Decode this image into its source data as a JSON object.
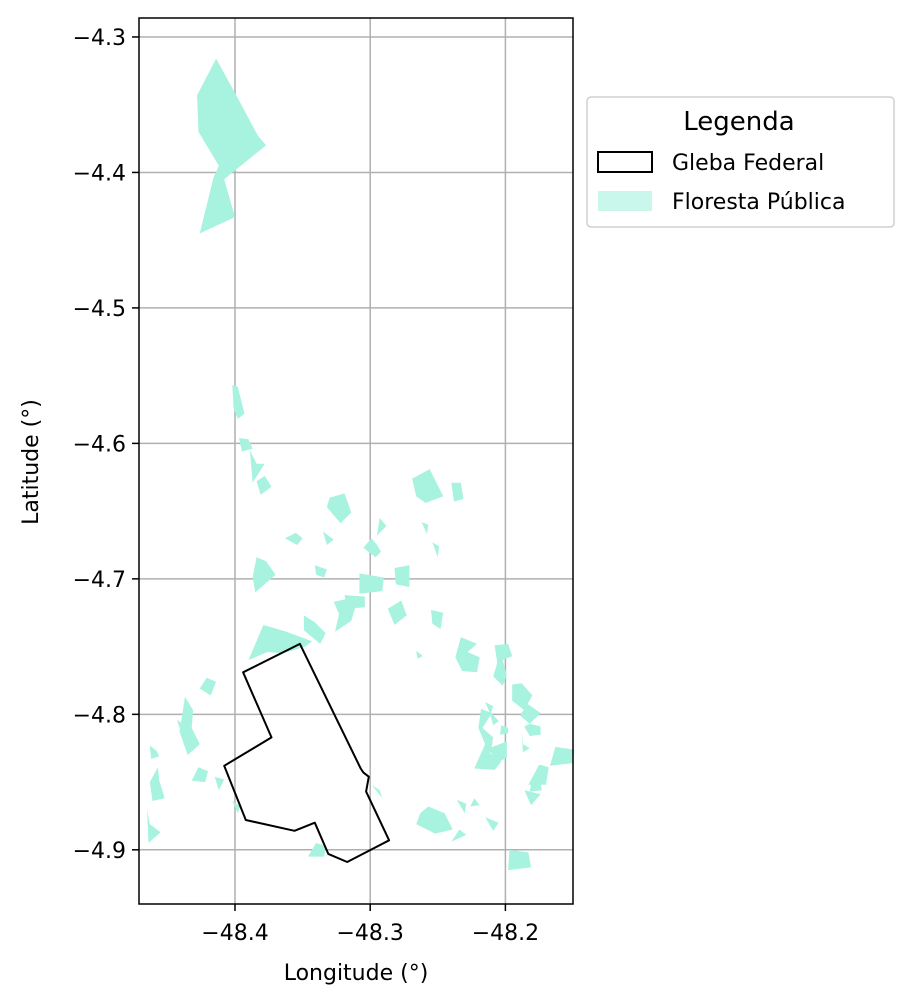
{
  "colors": {
    "forest_fill": "#a8f2e0",
    "forest_legend_fill": "#c9f7ec",
    "gleba_stroke": "#000000",
    "grid": "#b0b0b0",
    "axes": "#000000"
  },
  "axes": {
    "xlabel": "Longitude (°)",
    "ylabel": "Latitude (°)",
    "xlim": [
      -48.471,
      -48.15
    ],
    "ylim": [
      -4.94,
      -4.286
    ],
    "xticks": [
      {
        "value": -48.4,
        "label": "−48.4"
      },
      {
        "value": -48.3,
        "label": "−48.3"
      },
      {
        "value": -48.2,
        "label": "−48.2"
      }
    ],
    "yticks": [
      {
        "value": -4.3,
        "label": "−4.3"
      },
      {
        "value": -4.4,
        "label": "−4.4"
      },
      {
        "value": -4.5,
        "label": "−4.5"
      },
      {
        "value": -4.6,
        "label": "−4.6"
      },
      {
        "value": -4.7,
        "label": "−4.7"
      },
      {
        "value": -4.8,
        "label": "−4.8"
      },
      {
        "value": -4.9,
        "label": "−4.9"
      }
    ],
    "grid": true
  },
  "legend": {
    "title": "Legenda",
    "placement": "outside-right-top",
    "items": [
      {
        "label": "Gleba Federal",
        "kind": "outline"
      },
      {
        "label": "Floresta Pública",
        "kind": "fill"
      }
    ]
  },
  "layers": {
    "gleba_federal": [
      [
        -48.352,
        -4.748
      ],
      [
        -48.394,
        -4.769
      ],
      [
        -48.373,
        -4.817
      ],
      [
        -48.408,
        -4.838
      ],
      [
        -48.392,
        -4.878
      ],
      [
        -48.356,
        -4.886
      ],
      [
        -48.341,
        -4.88
      ],
      [
        -48.331,
        -4.903
      ],
      [
        -48.317,
        -4.909
      ],
      [
        -48.286,
        -4.893
      ],
      [
        -48.303,
        -4.857
      ],
      [
        -48.301,
        -4.846
      ],
      [
        -48.305,
        -4.843
      ],
      [
        -48.307,
        -4.84
      ],
      [
        -48.352,
        -4.748
      ]
    ],
    "floresta_publica": [
      [
        [
          -48.414,
          -4.316
        ],
        [
          -48.428,
          -4.343
        ],
        [
          -48.427,
          -4.37
        ],
        [
          -48.412,
          -4.395
        ],
        [
          -48.416,
          -4.404
        ],
        [
          -48.426,
          -4.445
        ],
        [
          -48.4,
          -4.433
        ],
        [
          -48.408,
          -4.405
        ],
        [
          -48.377,
          -4.38
        ],
        [
          -48.383,
          -4.373
        ],
        [
          -48.398,
          -4.345
        ]
      ],
      [
        [
          -48.402,
          -4.557
        ],
        [
          -48.398,
          -4.558
        ],
        [
          -48.393,
          -4.578
        ],
        [
          -48.398,
          -4.582
        ],
        [
          -48.401,
          -4.574
        ]
      ],
      [
        [
          -48.397,
          -4.596
        ],
        [
          -48.39,
          -4.597
        ],
        [
          -48.387,
          -4.604
        ],
        [
          -48.395,
          -4.606
        ]
      ],
      [
        [
          -48.389,
          -4.605
        ],
        [
          -48.384,
          -4.615
        ],
        [
          -48.378,
          -4.615
        ],
        [
          -48.387,
          -4.629
        ]
      ],
      [
        [
          -48.384,
          -4.628
        ],
        [
          -48.378,
          -4.624
        ],
        [
          -48.373,
          -4.632
        ],
        [
          -48.381,
          -4.638
        ]
      ],
      [
        [
          -48.384,
          -4.684
        ],
        [
          -48.377,
          -4.687
        ],
        [
          -48.37,
          -4.697
        ],
        [
          -48.385,
          -4.71
        ],
        [
          -48.387,
          -4.699
        ]
      ],
      [
        [
          -48.379,
          -4.734
        ],
        [
          -48.362,
          -4.739
        ],
        [
          -48.343,
          -4.746
        ],
        [
          -48.348,
          -4.75
        ],
        [
          -48.365,
          -4.755
        ],
        [
          -48.376,
          -4.754
        ],
        [
          -48.39,
          -4.76
        ]
      ],
      [
        [
          -48.349,
          -4.727
        ],
        [
          -48.341,
          -4.732
        ],
        [
          -48.333,
          -4.74
        ],
        [
          -48.337,
          -4.748
        ],
        [
          -48.349,
          -4.738
        ]
      ],
      [
        [
          -48.327,
          -4.717
        ],
        [
          -48.318,
          -4.715
        ],
        [
          -48.311,
          -4.721
        ],
        [
          -48.314,
          -4.731
        ],
        [
          -48.326,
          -4.739
        ],
        [
          -48.323,
          -4.726
        ]
      ],
      [
        [
          -48.308,
          -4.696
        ],
        [
          -48.29,
          -4.699
        ],
        [
          -48.291,
          -4.709
        ],
        [
          -48.308,
          -4.711
        ]
      ],
      [
        [
          -48.319,
          -4.712
        ],
        [
          -48.304,
          -4.713
        ],
        [
          -48.304,
          -4.721
        ],
        [
          -48.317,
          -4.722
        ]
      ],
      [
        [
          -48.282,
          -4.692
        ],
        [
          -48.271,
          -4.69
        ],
        [
          -48.271,
          -4.706
        ],
        [
          -48.281,
          -4.704
        ]
      ],
      [
        [
          -48.299,
          -4.67
        ],
        [
          -48.295,
          -4.675
        ],
        [
          -48.292,
          -4.68
        ],
        [
          -48.296,
          -4.684
        ],
        [
          -48.305,
          -4.677
        ]
      ],
      [
        [
          -48.293,
          -4.655
        ],
        [
          -48.288,
          -4.661
        ],
        [
          -48.295,
          -4.668
        ]
      ],
      [
        [
          -48.335,
          -4.665
        ],
        [
          -48.327,
          -4.671
        ],
        [
          -48.332,
          -4.675
        ]
      ],
      [
        [
          -48.341,
          -4.69
        ],
        [
          -48.332,
          -4.693
        ],
        [
          -48.334,
          -4.699
        ],
        [
          -48.34,
          -4.697
        ]
      ],
      [
        [
          -48.287,
          -4.722
        ],
        [
          -48.277,
          -4.716
        ],
        [
          -48.273,
          -4.727
        ],
        [
          -48.282,
          -4.734
        ]
      ],
      [
        [
          -48.355,
          -4.666
        ],
        [
          -48.35,
          -4.67
        ],
        [
          -48.354,
          -4.675
        ],
        [
          -48.363,
          -4.67
        ]
      ],
      [
        [
          -48.33,
          -4.64
        ],
        [
          -48.319,
          -4.637
        ],
        [
          -48.314,
          -4.651
        ],
        [
          -48.322,
          -4.659
        ],
        [
          -48.332,
          -4.647
        ]
      ],
      [
        [
          -48.269,
          -4.626
        ],
        [
          -48.256,
          -4.619
        ],
        [
          -48.246,
          -4.639
        ],
        [
          -48.259,
          -4.644
        ],
        [
          -48.266,
          -4.639
        ]
      ],
      [
        [
          -48.24,
          -4.629
        ],
        [
          -48.233,
          -4.629
        ],
        [
          -48.231,
          -4.641
        ],
        [
          -48.238,
          -4.643
        ]
      ],
      [
        [
          -48.262,
          -4.658
        ],
        [
          -48.257,
          -4.66
        ],
        [
          -48.258,
          -4.667
        ]
      ],
      [
        [
          -48.254,
          -4.673
        ],
        [
          -48.249,
          -4.676
        ],
        [
          -48.25,
          -4.684
        ]
      ],
      [
        [
          -48.255,
          -4.723
        ],
        [
          -48.246,
          -4.725
        ],
        [
          -48.248,
          -4.737
        ],
        [
          -48.254,
          -4.733
        ]
      ],
      [
        [
          -48.266,
          -4.753
        ],
        [
          -48.261,
          -4.757
        ],
        [
          -48.265,
          -4.759
        ]
      ],
      [
        [
          -48.233,
          -4.743
        ],
        [
          -48.221,
          -4.748
        ],
        [
          -48.228,
          -4.754
        ],
        [
          -48.219,
          -4.758
        ],
        [
          -48.221,
          -4.769
        ],
        [
          -48.232,
          -4.768
        ],
        [
          -48.237,
          -4.758
        ]
      ],
      [
        [
          -48.208,
          -4.749
        ],
        [
          -48.198,
          -4.748
        ],
        [
          -48.195,
          -4.757
        ],
        [
          -48.202,
          -4.76
        ],
        [
          -48.199,
          -4.771
        ],
        [
          -48.202,
          -4.779
        ],
        [
          -48.209,
          -4.772
        ],
        [
          -48.206,
          -4.762
        ]
      ],
      [
        [
          -48.195,
          -4.778
        ],
        [
          -48.188,
          -4.777
        ],
        [
          -48.18,
          -4.786
        ],
        [
          -48.186,
          -4.797
        ],
        [
          -48.195,
          -4.79
        ]
      ],
      [
        [
          -48.184,
          -4.792
        ],
        [
          -48.174,
          -4.799
        ],
        [
          -48.182,
          -4.807
        ],
        [
          -48.189,
          -4.801
        ]
      ],
      [
        [
          -48.215,
          -4.791
        ],
        [
          -48.209,
          -4.794
        ],
        [
          -48.211,
          -4.8
        ]
      ],
      [
        [
          -48.218,
          -4.796
        ],
        [
          -48.21,
          -4.799
        ],
        [
          -48.217,
          -4.81
        ],
        [
          -48.209,
          -4.817
        ],
        [
          -48.211,
          -4.829
        ],
        [
          -48.203,
          -4.835
        ],
        [
          -48.208,
          -4.841
        ],
        [
          -48.223,
          -4.84
        ],
        [
          -48.215,
          -4.822
        ],
        [
          -48.22,
          -4.81
        ]
      ],
      [
        [
          -48.188,
          -4.813
        ],
        [
          -48.187,
          -4.822
        ],
        [
          -48.182,
          -4.825
        ],
        [
          -48.187,
          -4.828
        ]
      ],
      [
        [
          -48.182,
          -4.807
        ],
        [
          -48.174,
          -4.809
        ],
        [
          -48.174,
          -4.815
        ],
        [
          -48.182,
          -4.816
        ],
        [
          -48.186,
          -4.809
        ]
      ],
      [
        [
          -48.203,
          -4.808
        ],
        [
          -48.198,
          -4.81
        ],
        [
          -48.198,
          -4.814
        ],
        [
          -48.204,
          -4.815
        ]
      ],
      [
        [
          -48.212,
          -4.797
        ],
        [
          -48.205,
          -4.805
        ],
        [
          -48.209,
          -4.808
        ]
      ],
      [
        [
          -48.199,
          -4.82
        ],
        [
          -48.199,
          -4.832
        ],
        [
          -48.207,
          -4.836
        ],
        [
          -48.212,
          -4.825
        ]
      ],
      [
        [
          -48.175,
          -4.837
        ],
        [
          -48.168,
          -4.839
        ],
        [
          -48.17,
          -4.852
        ],
        [
          -48.183,
          -4.852
        ]
      ],
      [
        [
          -48.163,
          -4.824
        ],
        [
          -48.149,
          -4.826
        ],
        [
          -48.15,
          -4.836
        ],
        [
          -48.167,
          -4.838
        ]
      ],
      [
        [
          -48.175,
          -4.847
        ],
        [
          -48.173,
          -4.856
        ],
        [
          -48.182,
          -4.857
        ],
        [
          -48.181,
          -4.851
        ]
      ],
      [
        [
          -48.186,
          -4.856
        ],
        [
          -48.174,
          -4.859
        ],
        [
          -48.181,
          -4.867
        ]
      ],
      [
        [
          -48.223,
          -4.862
        ],
        [
          -48.219,
          -4.867
        ],
        [
          -48.226,
          -4.868
        ]
      ],
      [
        [
          -48.236,
          -4.863
        ],
        [
          -48.229,
          -4.866
        ],
        [
          -48.23,
          -4.873
        ]
      ],
      [
        [
          -48.257,
          -4.868
        ],
        [
          -48.245,
          -4.873
        ],
        [
          -48.239,
          -4.885
        ],
        [
          -48.252,
          -4.888
        ],
        [
          -48.266,
          -4.881
        ],
        [
          -48.263,
          -4.873
        ]
      ],
      [
        [
          -48.234,
          -4.885
        ],
        [
          -48.229,
          -4.889
        ],
        [
          -48.24,
          -4.894
        ]
      ],
      [
        [
          -48.215,
          -4.876
        ],
        [
          -48.205,
          -4.88
        ],
        [
          -48.209,
          -4.886
        ]
      ],
      [
        [
          -48.197,
          -4.9
        ],
        [
          -48.183,
          -4.902
        ],
        [
          -48.181,
          -4.913
        ],
        [
          -48.198,
          -4.915
        ]
      ],
      [
        [
          -48.421,
          -4.773
        ],
        [
          -48.414,
          -4.776
        ],
        [
          -48.418,
          -4.786
        ],
        [
          -48.426,
          -4.781
        ]
      ],
      [
        [
          -48.437,
          -4.787
        ],
        [
          -48.431,
          -4.797
        ],
        [
          -48.432,
          -4.81
        ],
        [
          -48.426,
          -4.822
        ],
        [
          -48.435,
          -4.83
        ],
        [
          -48.441,
          -4.813
        ]
      ],
      [
        [
          -48.443,
          -4.804
        ],
        [
          -48.439,
          -4.807
        ],
        [
          -48.44,
          -4.813
        ]
      ],
      [
        [
          -48.463,
          -4.823
        ],
        [
          -48.458,
          -4.827
        ],
        [
          -48.456,
          -4.831
        ],
        [
          -48.462,
          -4.833
        ]
      ],
      [
        [
          -48.457,
          -4.839
        ],
        [
          -48.456,
          -4.849
        ],
        [
          -48.452,
          -4.862
        ],
        [
          -48.461,
          -4.864
        ],
        [
          -48.463,
          -4.85
        ]
      ],
      [
        [
          -48.465,
          -4.87
        ],
        [
          -48.463,
          -4.881
        ],
        [
          -48.455,
          -4.887
        ],
        [
          -48.464,
          -4.895
        ]
      ],
      [
        [
          -48.427,
          -4.839
        ],
        [
          -48.42,
          -4.842
        ],
        [
          -48.422,
          -4.85
        ],
        [
          -48.432,
          -4.849
        ]
      ],
      [
        [
          -48.415,
          -4.846
        ],
        [
          -48.408,
          -4.848
        ],
        [
          -48.412,
          -4.856
        ]
      ],
      [
        [
          -48.402,
          -4.864
        ],
        [
          -48.396,
          -4.868
        ],
        [
          -48.398,
          -4.873
        ]
      ],
      [
        [
          -48.34,
          -4.895
        ],
        [
          -48.333,
          -4.897
        ],
        [
          -48.334,
          -4.905
        ],
        [
          -48.346,
          -4.905
        ]
      ],
      [
        [
          -48.299,
          -4.852
        ],
        [
          -48.293,
          -4.856
        ],
        [
          -48.291,
          -4.862
        ]
      ]
    ]
  }
}
